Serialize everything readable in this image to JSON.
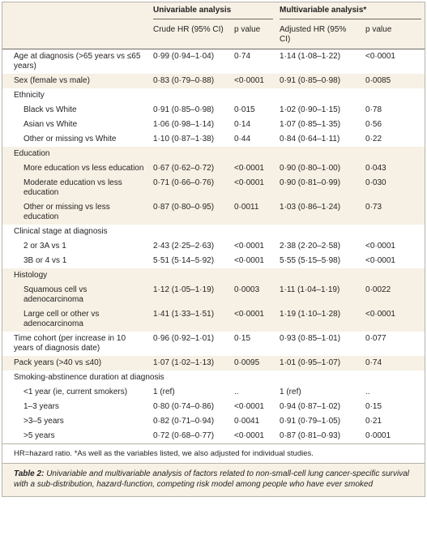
{
  "table": {
    "group_headers": [
      "Univariable analysis",
      "Multivariable analysis*"
    ],
    "columns": [
      "Crude HR (95% CI)",
      "p value",
      "Adjusted HR (95% CI)",
      "p value"
    ],
    "sections": [
      {
        "rows": [
          [
            "Age at diagnosis (>65 years vs ≤65 years)",
            "0·99 (0·94–1·04)",
            "0·74",
            "1·14 (1·08–1·22)",
            "<0·0001"
          ]
        ]
      },
      {
        "rows": [
          [
            "Sex (female vs male)",
            "0·83 (0·79–0·88)",
            "<0·0001",
            "0·91 (0·85–0·98)",
            "0·0085"
          ]
        ]
      },
      {
        "rows": [
          [
            "Ethnicity"
          ],
          [
            "Black vs White",
            "0·91 (0·85–0·98)",
            "0·015",
            "1·02 (0·90–1·15)",
            "0·78"
          ],
          [
            "Asian vs White",
            "1·06 (0·98–1·14)",
            "0·14",
            "1·07 (0·85–1·35)",
            "0·56"
          ],
          [
            "Other or missing vs White",
            "1·10 (0·87–1·38)",
            "0·44",
            "0·84 (0·64–1·11)",
            "0·22"
          ]
        ]
      },
      {
        "rows": [
          [
            "Education"
          ],
          [
            "More education vs less education",
            "0·67 (0·62–0·72)",
            "<0·0001",
            "0·90 (0·80–1·00)",
            "0·043"
          ],
          [
            "Moderate education vs less education",
            "0·71 (0·66–0·76)",
            "<0·0001",
            "0·90 (0·81–0·99)",
            "0·030"
          ],
          [
            "Other or missing vs less education",
            "0·87 (0·80–0·95)",
            "0·0011",
            "1·03 (0·86–1·24)",
            "0·73"
          ]
        ]
      },
      {
        "rows": [
          [
            "Clinical stage at diagnosis"
          ],
          [
            "2 or 3A vs 1",
            "2·43 (2·25–2·63)",
            "<0·0001",
            "2·38 (2·20–2·58)",
            "<0·0001"
          ],
          [
            "3B or 4 vs 1",
            "5·51 (5·14–5·92)",
            "<0·0001",
            "5·55 (5·15–5·98)",
            "<0·0001"
          ]
        ]
      },
      {
        "rows": [
          [
            "Histology"
          ],
          [
            "Squamous cell vs adenocarcinoma",
            "1·12 (1·05–1·19)",
            "0·0003",
            "1·11 (1·04–1·19)",
            "0·0022"
          ],
          [
            "Large cell or other vs adenocarcinoma",
            "1·41 (1·33–1·51)",
            "<0·0001",
            "1·19 (1·10–1·28)",
            "<0·0001"
          ]
        ]
      },
      {
        "rows": [
          [
            "Time cohort (per increase in 10 years of diagnosis date)",
            "0·96 (0·92–1·01)",
            "0·15",
            "0·93 (0·85–1·01)",
            "0·077"
          ]
        ]
      },
      {
        "rows": [
          [
            "Pack years (>40 vs ≤40)",
            "1·07 (1·02–1·13)",
            "0·0095",
            "1·01 (0·95–1·07)",
            "0·74"
          ]
        ]
      },
      {
        "rows": [
          [
            "Smoking-abstinence duration at diagnosis"
          ],
          [
            "<1 year (ie, current smokers)",
            "1 (ref)",
            "..",
            "1 (ref)",
            ".."
          ],
          [
            "1–3 years",
            "0·80 (0·74–0·86)",
            "<0·0001",
            "0·94 (0·87–1·02)",
            "0·15"
          ],
          [
            ">3–5 years",
            "0·82 (0·71–0·94)",
            "0·0041",
            "0·91 (0·79–1·05)",
            "0·21"
          ],
          [
            ">5 years",
            "0·72 (0·68–0·77)",
            "<0·0001",
            "0·87 (0·81–0·93)",
            "0·0001"
          ]
        ]
      }
    ]
  },
  "footnote": "HR=hazard ratio. *As well as the variables listed, we also adjusted for individual studies.",
  "caption": {
    "label": "Table 2: ",
    "text": "Univariable and multivariable analysis of factors related to non-small-cell lung cancer-specific survival with a sub-distribution, hazard-function, competing risk model among people who have ever smoked"
  }
}
